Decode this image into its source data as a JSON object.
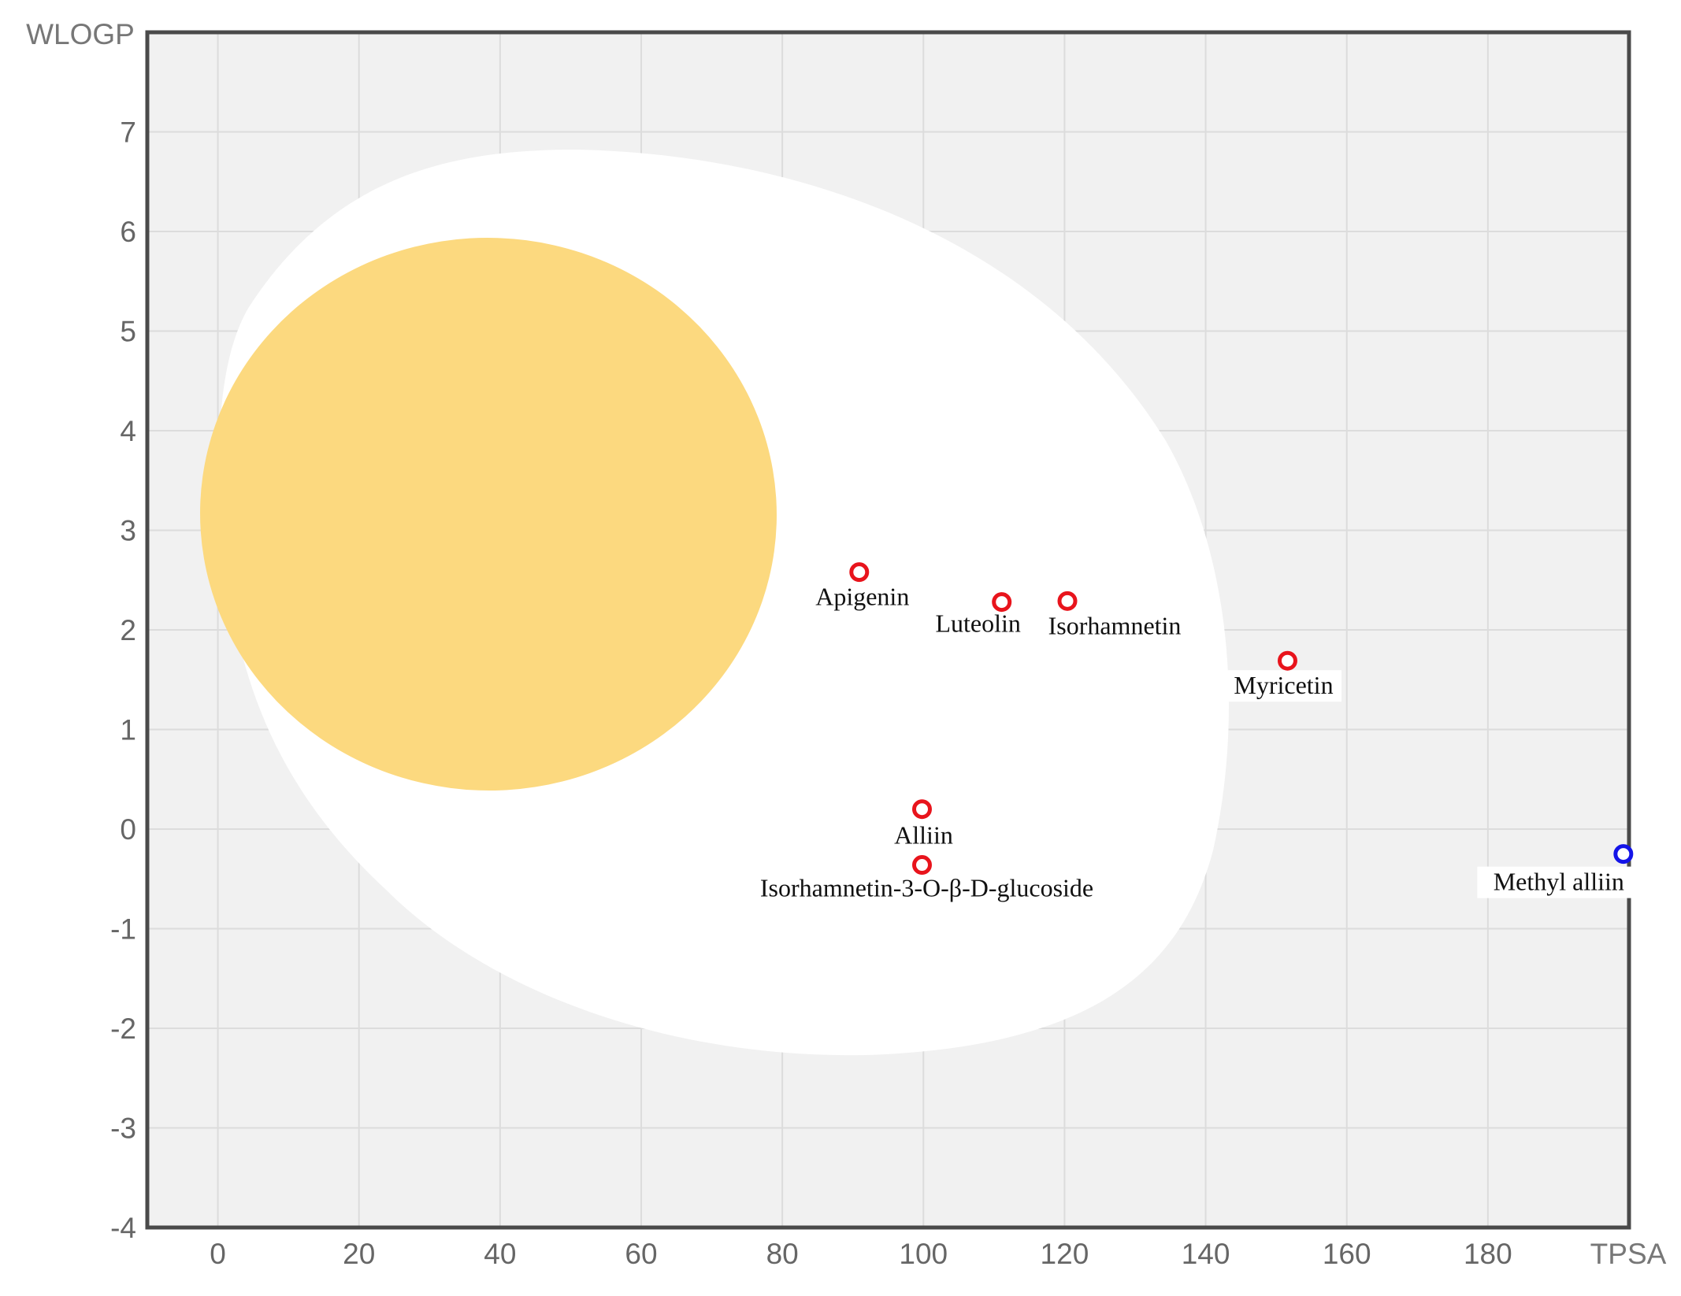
{
  "chart_data": {
    "type": "scatter",
    "title": "",
    "xlabel": "TPSA",
    "ylabel": "WLOGP",
    "xlim": [
      -10,
      200
    ],
    "ylim": [
      -4,
      8
    ],
    "x_ticks": [
      0,
      20,
      40,
      60,
      80,
      100,
      120,
      140,
      160,
      180
    ],
    "y_ticks": [
      -4,
      -3,
      -2,
      -1,
      0,
      1,
      2,
      3,
      4,
      5,
      6,
      7
    ],
    "grid": true,
    "regions": [
      {
        "name": "white-region",
        "color": "#ffffff"
      },
      {
        "name": "yolk-region",
        "color": "#fcd97f"
      }
    ],
    "series": [
      {
        "name": "red",
        "color": "#e8141c",
        "points": [
          {
            "label": "Apigenin",
            "x": 90.9,
            "y": 2.58
          },
          {
            "label": "Luteolin",
            "x": 111.1,
            "y": 2.28
          },
          {
            "label": "Isorhamnetin",
            "x": 120.4,
            "y": 2.29
          },
          {
            "label": "Myricetin",
            "x": 151.6,
            "y": 1.69
          },
          {
            "label": "Alliin",
            "x": 99.8,
            "y": 0.2
          },
          {
            "label": "Isorhamnetin-3-O-β-D-glucoside",
            "x": 99.8,
            "y": -0.36
          }
        ]
      },
      {
        "name": "blue",
        "color": "#1414e8",
        "points": [
          {
            "label": "Methyl alliin",
            "x": 199.2,
            "y": -0.25
          }
        ]
      }
    ]
  }
}
